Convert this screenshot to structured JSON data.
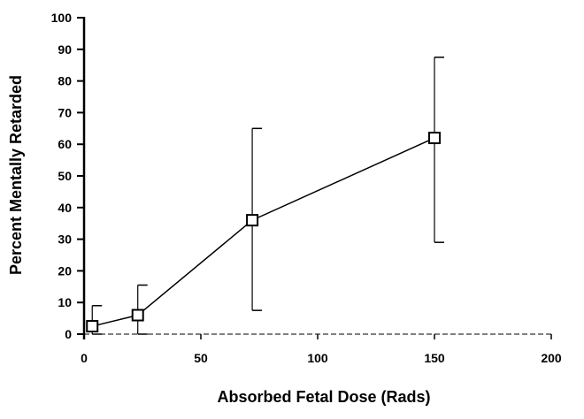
{
  "chart_data": {
    "type": "line",
    "title": "",
    "xlabel": "Absorbed Fetal Dose (Rads)",
    "ylabel": "Percent Mentally Retarded",
    "xlim": [
      0,
      200
    ],
    "ylim": [
      0,
      100
    ],
    "xticks": [
      0,
      50,
      100,
      150,
      200
    ],
    "yticks": [
      0,
      10,
      20,
      30,
      40,
      50,
      60,
      70,
      80,
      90,
      100
    ],
    "grid": false,
    "series": [
      {
        "name": "Percent Mentally Retarded",
        "marker": "square",
        "x": [
          3.5,
          23,
          72,
          150
        ],
        "y": [
          2.5,
          6,
          36,
          62
        ],
        "err_low": [
          0,
          0,
          7.5,
          29
        ],
        "err_high": [
          9,
          15.5,
          65,
          87.5
        ]
      }
    ]
  }
}
